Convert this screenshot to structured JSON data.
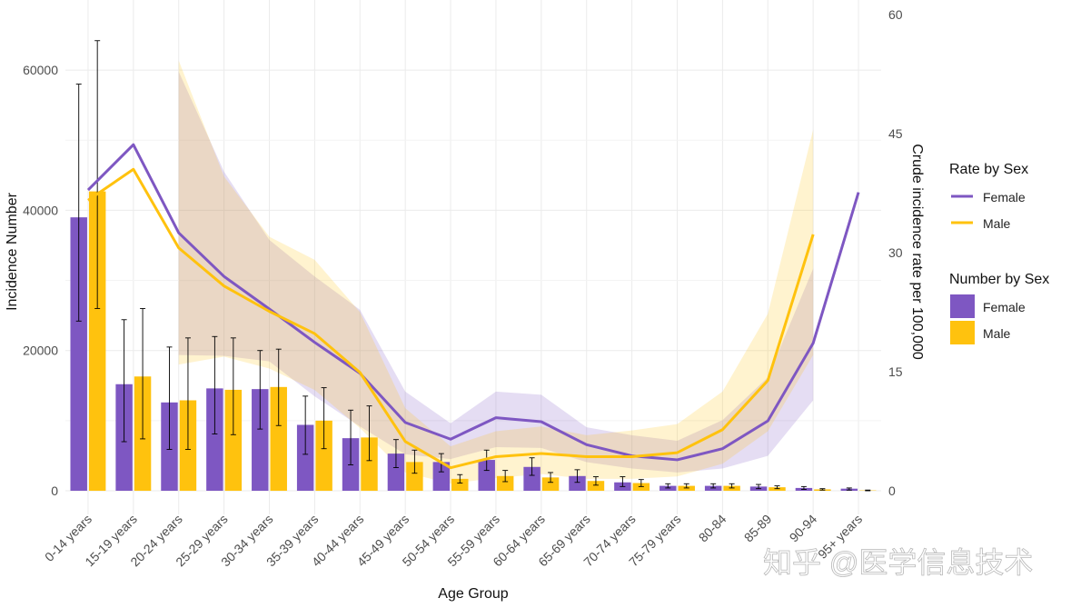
{
  "chart_data": {
    "type": "bar",
    "xlabel": "Age Group",
    "ylabel_left": "Incidence Number",
    "ylabel_right": "Crude incidence rate per 100,000",
    "ylim_left": [
      0,
      70000
    ],
    "ylim_right": [
      0,
      60
    ],
    "left_ticks": [
      "0",
      "20000",
      "40000",
      "60000"
    ],
    "right_ticks": [
      "0",
      "15",
      "30",
      "45",
      "60"
    ],
    "grid": true,
    "legend_position": "right",
    "categories": [
      "0-14 years",
      "15-19 years",
      "20-24 years",
      "25-29 years",
      "30-34 years",
      "35-39 years",
      "40-44 years",
      "45-49 years",
      "50-54 years",
      "55-59 years",
      "60-64 years",
      "65-69 years",
      "70-74 years",
      "75-79 years",
      "80-84",
      "85-89",
      "90-94",
      "95+ years"
    ],
    "bar_series": [
      {
        "name": "Female",
        "color": "#7e57c2",
        "values": [
          39000,
          15200,
          12600,
          14600,
          14500,
          9400,
          7500,
          5300,
          4100,
          4400,
          3400,
          2100,
          1200,
          700,
          700,
          600,
          400,
          300
        ],
        "lower": [
          24200,
          7000,
          5900,
          8100,
          8800,
          5200,
          3700,
          3300,
          2700,
          2900,
          2200,
          1200,
          600,
          400,
          400,
          300,
          200,
          100
        ],
        "upper": [
          58000,
          24400,
          20500,
          22000,
          20000,
          13500,
          11500,
          7300,
          5300,
          5800,
          4700,
          3000,
          2000,
          1000,
          1000,
          900,
          600,
          400
        ]
      },
      {
        "name": "Male",
        "color": "#ffc20e",
        "values": [
          42700,
          16300,
          12900,
          14400,
          14800,
          10000,
          7600,
          4100,
          1700,
          2100,
          1900,
          1400,
          1100,
          700,
          700,
          500,
          200,
          50
        ],
        "lower": [
          26000,
          7400,
          5900,
          8000,
          9300,
          6000,
          4300,
          2500,
          1100,
          1300,
          1200,
          800,
          600,
          400,
          400,
          300,
          100,
          0
        ],
        "upper": [
          64200,
          26000,
          21800,
          21800,
          20200,
          14700,
          12100,
          5800,
          2300,
          2900,
          2600,
          2000,
          1600,
          1000,
          1000,
          700,
          300,
          100
        ]
      }
    ],
    "line_series": [
      {
        "name": "Female",
        "color": "#7e57c2",
        "values": [
          37.9,
          43.6,
          32.5,
          27.0,
          22.9,
          18.7,
          14.8,
          8.6,
          6.5,
          9.2,
          8.7,
          5.8,
          4.4,
          3.9,
          5.3,
          8.8,
          18.6,
          37.6
        ],
        "lower": [
          null,
          null,
          17.1,
          17.0,
          16.3,
          11.9,
          8.1,
          4.6,
          4.0,
          5.5,
          5.4,
          3.6,
          2.8,
          2.3,
          2.8,
          4.4,
          11.4,
          null
        ],
        "upper": [
          null,
          null,
          52.8,
          40.2,
          31.6,
          27.0,
          22.8,
          12.5,
          8.5,
          12.5,
          12.1,
          8.0,
          7.0,
          6.3,
          8.9,
          14.3,
          28.0,
          null
        ]
      },
      {
        "name": "Male",
        "color": "#ffc20e",
        "values": [
          36.6,
          40.5,
          30.6,
          25.8,
          22.6,
          19.8,
          14.9,
          6.2,
          2.9,
          4.3,
          4.7,
          4.3,
          4.3,
          4.8,
          7.7,
          13.9,
          32.3,
          null
        ],
        "lower": [
          null,
          null,
          15.9,
          16.9,
          15.4,
          12.7,
          7.9,
          2.3,
          0.9,
          1.6,
          2.1,
          1.5,
          1.5,
          1.8,
          3.4,
          7.5,
          17.1,
          null
        ],
        "upper": [
          null,
          null,
          54.2,
          39.6,
          32.0,
          29.1,
          22.5,
          10.4,
          5.6,
          7.5,
          8.1,
          7.0,
          7.6,
          8.4,
          12.5,
          22.3,
          45.5,
          null
        ]
      }
    ],
    "legend": {
      "rate_title": "Rate by Sex",
      "number_title": "Number by Sex",
      "items": [
        "Female",
        "Male"
      ]
    },
    "watermark": "知乎 @医学信息技术"
  }
}
